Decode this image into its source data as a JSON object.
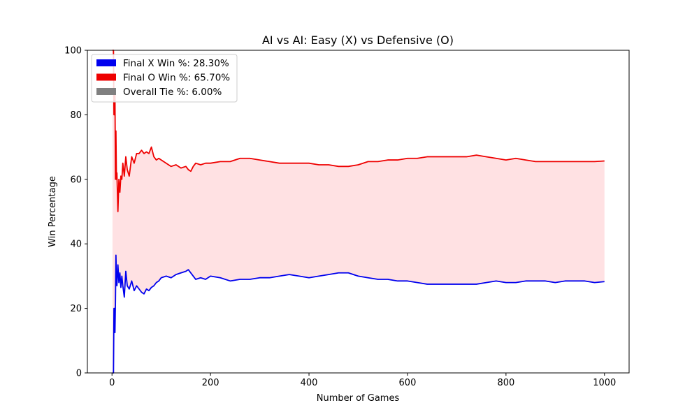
{
  "chart_data": {
    "type": "line",
    "title": "AI vs AI: Easy (X) vs Defensive (O)",
    "xlabel": "Number of Games",
    "ylabel": "Win Percentage",
    "xlim": [
      -50,
      1050
    ],
    "ylim": [
      0,
      100
    ],
    "xticks": [
      0,
      200,
      400,
      600,
      800,
      1000
    ],
    "yticks": [
      0,
      20,
      40,
      60,
      80,
      100
    ],
    "grid": false,
    "legend_position": "top-left",
    "fill_between": {
      "color": "#ffe1e3",
      "lower_series": "x",
      "upper_series": "o"
    },
    "series": [
      {
        "key": "x",
        "name": "Final X Win %: 28.30%",
        "color": "#0000ee",
        "x": [
          1,
          2,
          3,
          4,
          5,
          6,
          7,
          8,
          9,
          10,
          12,
          14,
          16,
          18,
          20,
          22,
          25,
          28,
          31,
          35,
          40,
          45,
          50,
          55,
          60,
          65,
          70,
          75,
          80,
          85,
          90,
          95,
          100,
          110,
          120,
          130,
          140,
          150,
          155,
          160,
          165,
          170,
          180,
          190,
          200,
          220,
          240,
          260,
          280,
          300,
          320,
          340,
          360,
          380,
          400,
          420,
          440,
          460,
          480,
          500,
          520,
          540,
          560,
          580,
          600,
          620,
          640,
          660,
          680,
          700,
          720,
          740,
          760,
          780,
          800,
          820,
          840,
          860,
          880,
          900,
          920,
          940,
          960,
          980,
          1000
        ],
        "values": [
          0,
          0,
          0,
          20,
          20,
          12.5,
          22,
          36.5,
          30,
          27,
          33.5,
          28,
          31,
          26.5,
          30,
          27,
          23.5,
          31.5,
          27,
          26,
          28.5,
          25.5,
          27,
          26,
          25,
          24.5,
          26,
          25.5,
          26.5,
          27,
          28,
          28.5,
          29.5,
          30,
          29.5,
          30.5,
          31,
          31.5,
          32,
          31,
          30,
          29,
          29.5,
          29,
          30,
          29.5,
          28.5,
          29,
          29,
          29.5,
          29.5,
          30,
          30.5,
          30,
          29.5,
          30,
          30.5,
          31,
          31,
          30,
          29.5,
          29,
          29,
          28.5,
          28.5,
          28,
          27.5,
          27.5,
          27.5,
          27.5,
          27.5,
          27.5,
          28,
          28.5,
          28,
          28,
          28.5,
          28.5,
          28.5,
          28,
          28.5,
          28.5,
          28.5,
          28,
          28.3
        ]
      },
      {
        "key": "o",
        "name": "Final O Win %: 65.70%",
        "color": "#ee0000",
        "x": [
          1,
          2,
          3,
          4,
          5,
          6,
          7,
          8,
          9,
          10,
          12,
          14,
          16,
          18,
          20,
          22,
          25,
          28,
          31,
          35,
          40,
          45,
          50,
          55,
          60,
          65,
          70,
          75,
          80,
          85,
          90,
          95,
          100,
          110,
          120,
          130,
          140,
          150,
          155,
          160,
          165,
          170,
          180,
          190,
          200,
          220,
          240,
          260,
          280,
          300,
          320,
          340,
          360,
          380,
          400,
          420,
          440,
          460,
          480,
          500,
          520,
          540,
          560,
          580,
          600,
          620,
          640,
          660,
          680,
          700,
          720,
          740,
          760,
          780,
          800,
          820,
          840,
          860,
          880,
          900,
          920,
          940,
          960,
          980,
          1000
        ],
        "values": [
          100,
          100,
          100,
          80,
          80,
          87.5,
          60,
          75,
          60,
          62,
          50,
          60,
          56,
          61,
          60,
          65,
          61,
          67,
          63,
          61,
          67,
          65,
          68,
          68,
          69,
          68,
          68.5,
          68,
          70,
          67,
          66,
          66.5,
          66,
          65,
          64,
          64.5,
          63.5,
          64,
          63,
          62.5,
          64,
          65,
          64.5,
          65,
          65,
          65.5,
          65.5,
          66.5,
          66.5,
          66,
          65.5,
          65,
          65,
          65,
          65,
          64.5,
          64.5,
          64,
          64,
          64.5,
          65.5,
          65.5,
          66,
          66,
          66.5,
          66.5,
          67,
          67,
          67,
          67,
          67,
          67.5,
          67,
          66.5,
          66,
          66.5,
          66,
          65.5,
          65.5,
          65.5,
          65.5,
          65.5,
          65.5,
          65.5,
          65.7
        ]
      }
    ],
    "legend": [
      {
        "label": "Final X Win %: 28.30%",
        "color": "#0000ee"
      },
      {
        "label": "Final O Win %: 65.70%",
        "color": "#ee0000"
      },
      {
        "label": "Overall Tie %: 6.00%",
        "color": "#808080"
      }
    ]
  }
}
